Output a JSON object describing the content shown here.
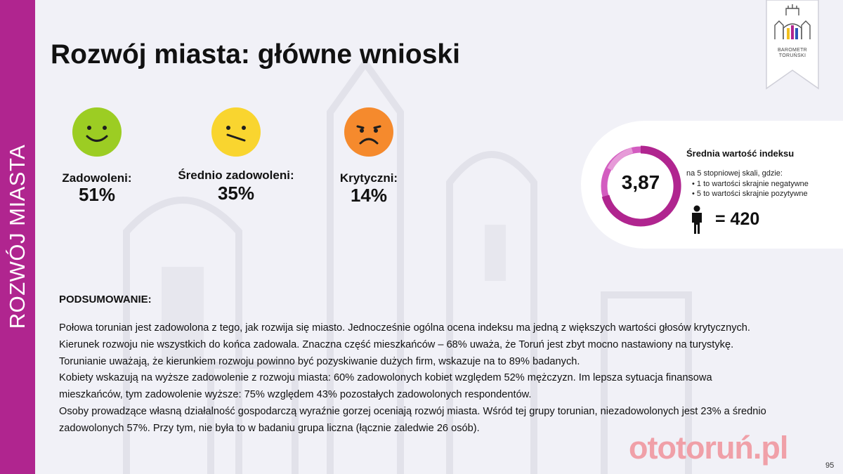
{
  "sidebar": {
    "label": "ROZWÓJ MIASTA"
  },
  "header": {
    "title": "Rozwój miasta: główne wnioski"
  },
  "logo": {
    "line1": "BAROMETR",
    "line2": "TORUŃSKI"
  },
  "metrics": [
    {
      "label": "Zadowoleni:",
      "value": "51%",
      "icon": "happy-face-icon",
      "color": "#9ccd23"
    },
    {
      "label": "Średnio zadowoleni:",
      "value": "35%",
      "icon": "neutral-face-icon",
      "color": "#f9d52f"
    },
    {
      "label": "Krytyczni:",
      "value": "14%",
      "icon": "sad-face-icon",
      "color": "#f58a2d"
    }
  ],
  "index": {
    "value": "3,87",
    "title": "Średnia wartość indeksu",
    "scale_desc": "na 5 stopniowej skali, gdzie:",
    "scale_items": [
      "1 to wartości skrajnie negatywne",
      "5 to wartości skrajnie pozytywne"
    ],
    "count": "= 420",
    "ring_color": "#b0258f"
  },
  "summary": {
    "heading": "PODSUMOWANIE:",
    "lines": [
      "Połowa torunian jest zadowolona z tego, jak rozwija się miasto. Jednocześnie ogólna ocena indeksu ma jedną z większych wartości głosów krytycznych.",
      "Kierunek rozwoju nie wszystkich do końca zadowala. Znaczna część mieszkańców – 68% uważa, że Toruń jest zbyt mocno nastawiony na turystykę.",
      "Torunianie uważają, że kierunkiem rozwoju powinno być pozyskiwanie dużych firm, wskazuje na to 89% badanych.",
      "Kobiety wskazują na wyższe zadowolenie z rozwoju miasta: 60% zadowolonych kobiet względem 52% mężczyzn. Im lepsza sytuacja finansowa",
      "mieszkańców, tym zadowolenie wyższe: 75% względem 43% pozostałych zadowolonych respondentów.",
      "Osoby prowadzące własną działalność gospodarczą wyraźnie gorzej oceniają rozwój miasta. Wśród tej grupy torunian, niezadowolonych jest 23% a średnio",
      "zadowolonych 57%. Przy tym, nie była to w badaniu grupa liczna (łącznie zaledwie 26 osób)."
    ]
  },
  "watermark": "ototoruń.pl",
  "page_number": "95",
  "colors": {
    "accent": "#b0258f",
    "background": "#f1f1f7"
  }
}
